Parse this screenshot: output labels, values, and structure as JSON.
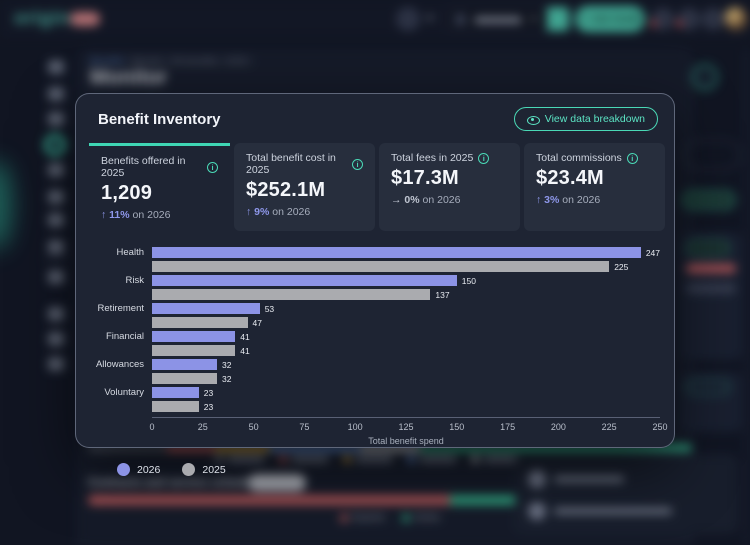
{
  "app": {
    "logo_text": "origin",
    "header": {
      "ask_guide_label": "Ask Guide",
      "ask_guide_icon": "sparkle"
    }
  },
  "breadcrumb": {
    "items": [
      "Benefits",
      "Monitor",
      "All benefits",
      "2025"
    ],
    "separator": " / "
  },
  "page_title": "Monitor",
  "modal": {
    "title": "Benefit Inventory",
    "view_button_label": "View data breakdown",
    "stats": [
      {
        "label": "Benefits offered in 2025",
        "value": "1,209",
        "delta_dir": "up",
        "delta_pct": "11%",
        "delta_suffix": "on 2026",
        "active": true
      },
      {
        "label": "Total benefit cost in 2025",
        "value": "$252.1M",
        "delta_dir": "up",
        "delta_pct": "9%",
        "delta_suffix": "on 2026",
        "active": false
      },
      {
        "label": "Total fees in 2025",
        "value": "$17.3M",
        "delta_dir": "flat",
        "delta_pct": "0%",
        "delta_suffix": "on 2026",
        "active": false
      },
      {
        "label": "Total commissions",
        "value": "$23.4M",
        "delta_dir": "up",
        "delta_pct": "3%",
        "delta_suffix": "on 2026",
        "active": false
      }
    ]
  },
  "chart_data": {
    "type": "bar",
    "orientation": "horizontal",
    "title": "Benefit Inventory",
    "categories": [
      "Health",
      "Risk",
      "Retirement",
      "Financial",
      "Allowances",
      "Voluntary"
    ],
    "series": [
      {
        "name": "2026",
        "color": "#8c93e6",
        "values": [
          247,
          150,
          53,
          41,
          32,
          23
        ]
      },
      {
        "name": "2025",
        "color": "#aaabaf",
        "values": [
          225,
          137,
          47,
          41,
          32,
          23
        ]
      }
    ],
    "xlabel": "Total benefit spend",
    "xlim": [
      0,
      250
    ],
    "xticks": [
      0,
      25,
      50,
      75,
      100,
      125,
      150,
      175,
      200,
      225,
      250
    ],
    "show_values": true,
    "grid": false,
    "legend_position": "bottom-left"
  },
  "background": {
    "contracts_title": "Contracts and service schedules",
    "contracts_caret": "›",
    "status_bar_segments": [
      {
        "color": "#5d6473",
        "pct": 13
      },
      {
        "color": "#e06c6c",
        "pct": 8
      },
      {
        "color": "#e8b54a",
        "pct": 9
      },
      {
        "color": "#6f9ee8",
        "pct": 15
      },
      {
        "color": "#d8dce2",
        "pct": 10
      },
      {
        "color": "#3ecf9f",
        "pct": 45
      }
    ],
    "status_chip_colors": [
      "#8a92a4",
      "#e06c6c",
      "#e8b54a",
      "#6f9ee8",
      "#d8dce2",
      "#3ecf9f"
    ],
    "contract_bar_segments": [
      {
        "color": "#e06c6c",
        "pct": 60
      },
      {
        "color": "#3ecf9f",
        "pct": 40
      }
    ],
    "contract_legend": [
      {
        "label": "Expired",
        "color": "#e06c6c"
      },
      {
        "label": "Active",
        "color": "#3ecf9f"
      }
    ]
  },
  "colors": {
    "accent_teal": "#4ad9b6",
    "series_2026": "#8c93e6",
    "series_2025": "#aaabaf",
    "delta_up": "#8e97ea",
    "modal_bg": "#1e2433",
    "stat_card_bg": "#272e3d"
  },
  "glyphs": {
    "arrow_up": "↑",
    "arrow_flat": "→"
  }
}
